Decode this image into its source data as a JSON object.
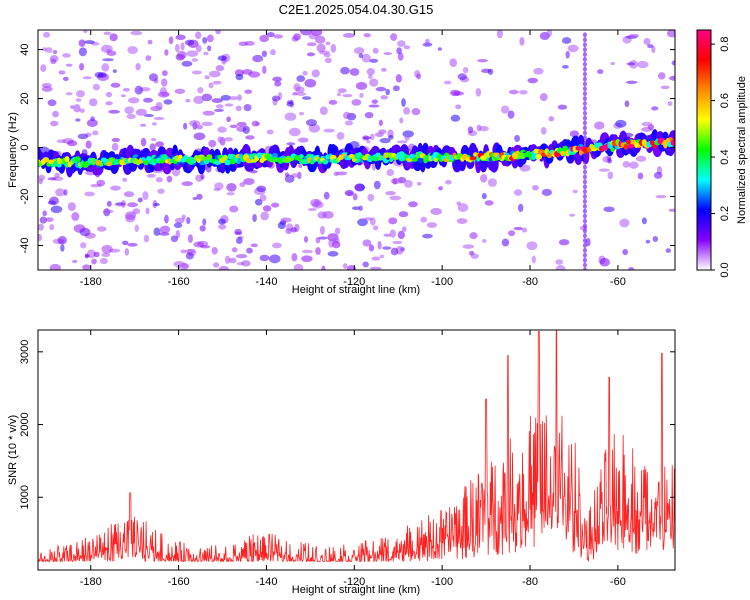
{
  "title": "C2E1.2025.054.04.30.G15",
  "chart_data": [
    {
      "type": "heatmap",
      "xlabel": "Height of straight line (km)",
      "ylabel": "Frequency (Hz)",
      "xlim": [
        -192,
        -47
      ],
      "ylim": [
        -50,
        48
      ],
      "x_ticks": [
        -180,
        -160,
        -140,
        -120,
        -100,
        -80,
        -60
      ],
      "y_ticks": [
        -40,
        -20,
        0,
        20,
        40
      ],
      "ridge": [
        {
          "x": -190,
          "y": -6
        },
        {
          "x": -180,
          "y": -6
        },
        {
          "x": -170,
          "y": -5
        },
        {
          "x": -160,
          "y": -5
        },
        {
          "x": -150,
          "y": -5
        },
        {
          "x": -140,
          "y": -4
        },
        {
          "x": -130,
          "y": -5
        },
        {
          "x": -120,
          "y": -4
        },
        {
          "x": -110,
          "y": -4
        },
        {
          "x": -100,
          "y": -4
        },
        {
          "x": -90,
          "y": -4
        },
        {
          "x": -80,
          "y": -3
        },
        {
          "x": -70,
          "y": -1
        },
        {
          "x": -60,
          "y": 1
        },
        {
          "x": -50,
          "y": 2
        }
      ],
      "colorbar": {
        "label": "Normalized spectral amplitude",
        "ticks": [
          0.0,
          0.2,
          0.4,
          0.6,
          0.8
        ],
        "range": [
          0,
          0.85
        ],
        "colormap": [
          "#ffffff",
          "#8800ff",
          "#0000ff",
          "#00ffff",
          "#00ff00",
          "#ffff00",
          "#ff8800",
          "#ff0000",
          "#ff0088"
        ]
      }
    },
    {
      "type": "line",
      "xlabel": "Height of straight line (km)",
      "ylabel": "SNR (10 * v/v)",
      "xlim": [
        -192,
        -47
      ],
      "ylim": [
        0,
        3300
      ],
      "x_ticks": [
        -180,
        -160,
        -140,
        -120,
        -100,
        -80,
        -60
      ],
      "y_ticks": [
        1000,
        2000,
        3000
      ],
      "color": "#ff2020",
      "envelope": [
        {
          "x": -192,
          "y": 320
        },
        {
          "x": -185,
          "y": 340
        },
        {
          "x": -178,
          "y": 560
        },
        {
          "x": -172,
          "y": 780
        },
        {
          "x": -168,
          "y": 700
        },
        {
          "x": -162,
          "y": 420
        },
        {
          "x": -155,
          "y": 330
        },
        {
          "x": -148,
          "y": 360
        },
        {
          "x": -142,
          "y": 520
        },
        {
          "x": -136,
          "y": 480
        },
        {
          "x": -128,
          "y": 330
        },
        {
          "x": -120,
          "y": 360
        },
        {
          "x": -112,
          "y": 500
        },
        {
          "x": -106,
          "y": 700
        },
        {
          "x": -100,
          "y": 850
        },
        {
          "x": -95,
          "y": 1150
        },
        {
          "x": -90,
          "y": 1500
        },
        {
          "x": -86,
          "y": 1700
        },
        {
          "x": -82,
          "y": 2000
        },
        {
          "x": -78,
          "y": 2300
        },
        {
          "x": -75,
          "y": 2250
        },
        {
          "x": -72,
          "y": 2150
        },
        {
          "x": -69,
          "y": 1650
        },
        {
          "x": -67,
          "y": 700
        },
        {
          "x": -65,
          "y": 1200
        },
        {
          "x": -62,
          "y": 1850
        },
        {
          "x": -59,
          "y": 1900
        },
        {
          "x": -55,
          "y": 1700
        },
        {
          "x": -51,
          "y": 1500
        },
        {
          "x": -47,
          "y": 1450
        }
      ],
      "peaks": [
        {
          "x": -171,
          "y": 1060
        },
        {
          "x": -90,
          "y": 2350
        },
        {
          "x": -85,
          "y": 2950
        },
        {
          "x": -78,
          "y": 3280
        },
        {
          "x": -74,
          "y": 3320
        },
        {
          "x": -62,
          "y": 2650
        },
        {
          "x": -50,
          "y": 2980
        }
      ]
    }
  ]
}
